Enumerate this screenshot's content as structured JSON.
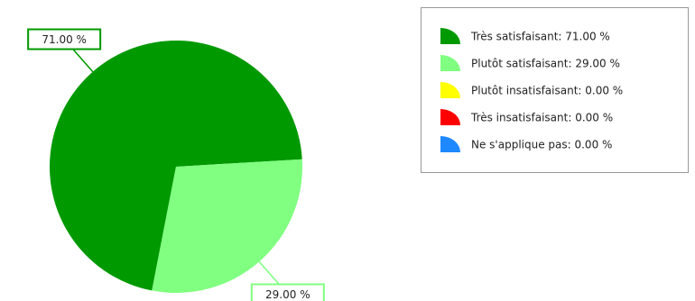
{
  "chart_data": {
    "type": "pie",
    "categories": [
      "Très satisfaisant: 71.00 %",
      "Plutôt satisfaisant: 29.00 %",
      "Plutôt insatisfaisant: 0.00 %",
      "Très insatisfaisant: 0.00 %",
      "Ne s'applique pas: 0.00 %"
    ],
    "values": [
      71,
      29,
      0,
      0,
      0
    ],
    "value_labels": [
      "71.00 %",
      "29.00 %",
      null,
      null,
      null
    ],
    "colors": [
      "#009900",
      "#80ff80",
      "#ffff00",
      "#ff0000",
      "#1e88ff"
    ],
    "legend": "top-right"
  }
}
